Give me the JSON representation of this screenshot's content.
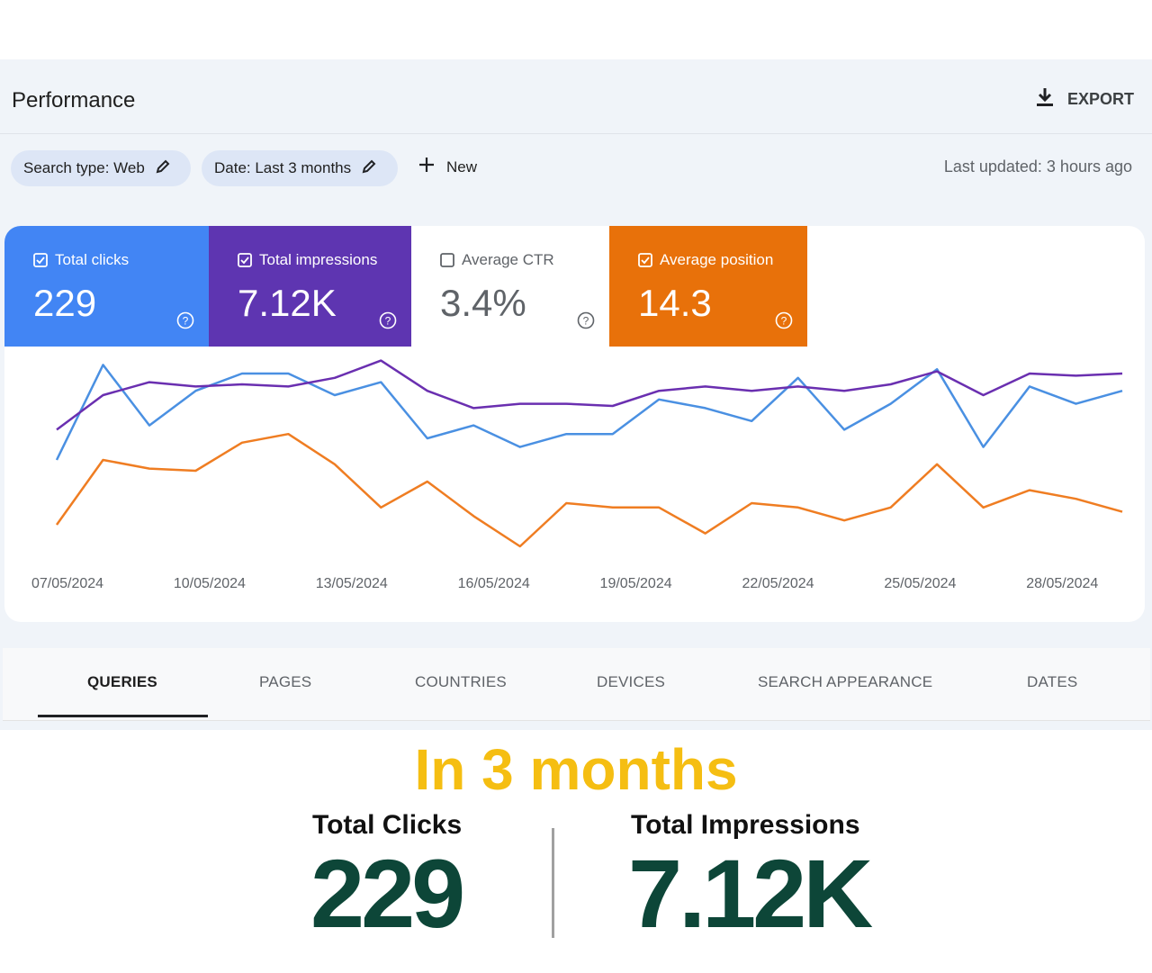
{
  "header": {
    "title": "Performance",
    "export_label": "EXPORT"
  },
  "filters": {
    "search_type": "Search type: Web",
    "date": "Date: Last 3 months",
    "new_label": "New",
    "last_updated": "Last updated: 3 hours ago"
  },
  "metrics": [
    {
      "label": "Total clicks",
      "value": "229",
      "checked": true,
      "color": "#4285f4"
    },
    {
      "label": "Total impressions",
      "value": "7.12K",
      "checked": true,
      "color": "#5e35b1"
    },
    {
      "label": "Average CTR",
      "value": "3.4%",
      "checked": false,
      "color": "#ffffff"
    },
    {
      "label": "Average position",
      "value": "14.3",
      "checked": true,
      "color": "#e8710a"
    }
  ],
  "chart_data": {
    "type": "line",
    "x_tick_labels": [
      "07/05/2024",
      "10/05/2024",
      "13/05/2024",
      "16/05/2024",
      "19/05/2024",
      "22/05/2024",
      "25/05/2024",
      "28/05/2024"
    ],
    "y_axis_visible": false,
    "grid": false,
    "series": [
      {
        "name": "Total clicks",
        "color": "#4a90e2",
        "values": [
          50,
          72,
          58,
          66,
          70,
          70,
          65,
          68,
          55,
          58,
          53,
          56,
          56,
          64,
          62,
          59,
          69,
          57,
          63,
          71,
          53,
          67,
          63,
          66
        ]
      },
      {
        "name": "Total impressions",
        "color": "#6a2fb0",
        "values": [
          57,
          65,
          68,
          67,
          67.5,
          67,
          69,
          73,
          66,
          62,
          63,
          63,
          62.5,
          66,
          67,
          66,
          67,
          66,
          67.5,
          70.5,
          65,
          70,
          69.5,
          70
        ]
      },
      {
        "name": "Average position",
        "color": "#ef7d22",
        "values": [
          35,
          50,
          48,
          47.5,
          54,
          56,
          49,
          39,
          45,
          37,
          30,
          40,
          39,
          39,
          33,
          40,
          39,
          36,
          39,
          49,
          39,
          43,
          41,
          38
        ]
      }
    ]
  },
  "tabs": [
    "QUERIES",
    "PAGES",
    "COUNTRIES",
    "DEVICES",
    "SEARCH APPEARANCE",
    "DATES"
  ],
  "summary": {
    "headline": "In 3 months",
    "clicks_label": "Total Clicks",
    "clicks_value": "229",
    "impressions_label": "Total Impressions",
    "impressions_value": "7.12K"
  }
}
